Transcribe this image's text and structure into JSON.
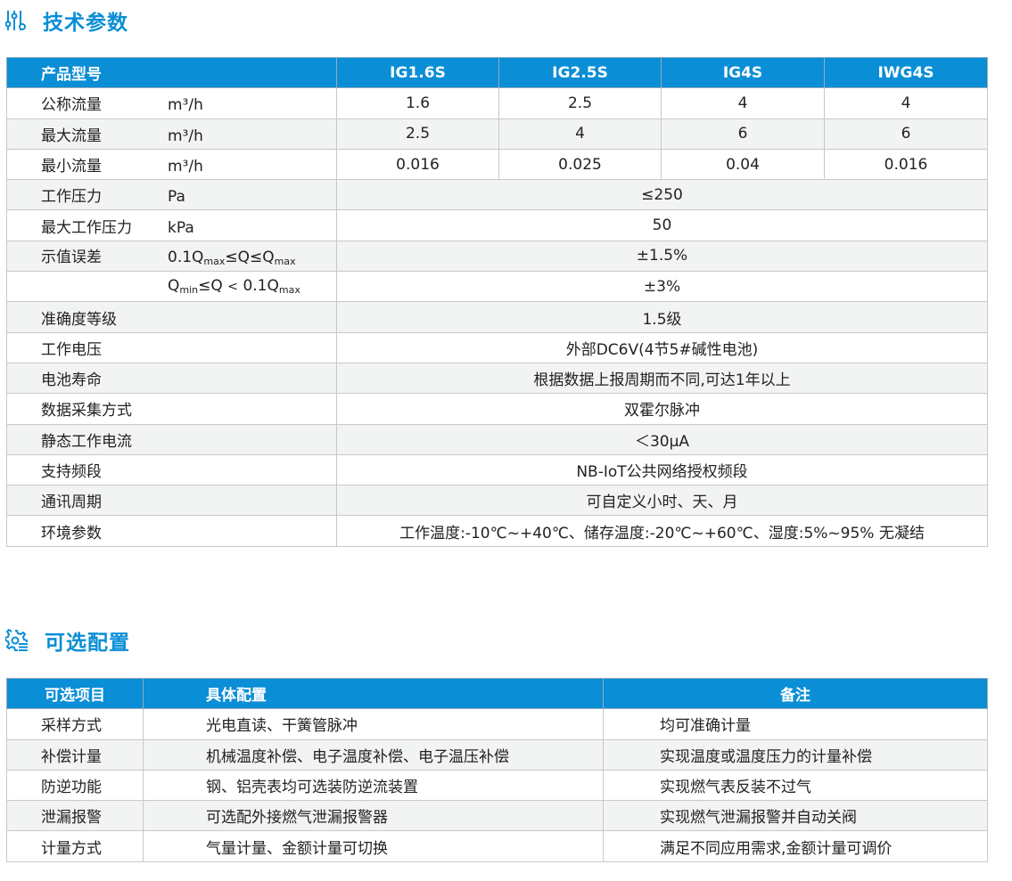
{
  "section1": {
    "title": "技术参数",
    "icon": "sliders-icon"
  },
  "specs": {
    "header": [
      "产品型号",
      "IG1.6S",
      "IG2.5S",
      "IG4S",
      "IWG4S"
    ],
    "model_rows": [
      {
        "name": "公称流量",
        "unit": "m³/h",
        "values": [
          "1.6",
          "2.5",
          "4",
          "4"
        ]
      },
      {
        "name": "最大流量",
        "unit": "m³/h",
        "values": [
          "2.5",
          "4",
          "6",
          "6"
        ]
      },
      {
        "name": "最小流量",
        "unit": "m³/h",
        "values": [
          "0.016",
          "0.025",
          "0.04",
          "0.016"
        ]
      }
    ],
    "pressure": {
      "name": "工作压力",
      "unit": "Pa",
      "value": "≤250"
    },
    "max_pressure": {
      "name": "最大工作压力",
      "unit": "kPa",
      "value": "50"
    },
    "error1": {
      "name": "示值误差",
      "cond": "0.1Qmax≤Q≤Qmax",
      "value": "±1.5%"
    },
    "error2": {
      "cond": "Qmin≤Q＜0.1Qmax",
      "value": "±3%"
    },
    "rows": [
      {
        "name": "准确度等级",
        "value": "1.5级"
      },
      {
        "name": "工作电压",
        "value": "外部DC6V(4节5#碱性电池)"
      },
      {
        "name": "电池寿命",
        "value": "根据数据上报周期而不同,可达1年以上"
      },
      {
        "name": "数据采集方式",
        "value": "双霍尔脉冲"
      },
      {
        "name": "静态工作电流",
        "value": "＜30μA"
      },
      {
        "name": "支持频段",
        "value": "NB-IoT公共网络授权频段"
      },
      {
        "name": "通讯周期",
        "value": "可自定义小时、天、月"
      },
      {
        "name": "环境参数",
        "value": "工作温度:-10℃~+40℃、储存温度:-20℃~+60℃、湿度:5%~95% 无凝结"
      }
    ]
  },
  "section2": {
    "title": "可选配置",
    "icon": "gear-list-icon"
  },
  "options": {
    "header": [
      "可选项目",
      "具体配置",
      "备注"
    ],
    "rows": [
      [
        "采样方式",
        "光电直读、干簧管脉冲",
        "均可准确计量"
      ],
      [
        "补偿计量",
        "机械温度补偿、电子温度补偿、电子温压补偿",
        "实现温度或温度压力的计量补偿"
      ],
      [
        "防逆功能",
        "钢、铝壳表均可选装防逆流装置",
        "实现燃气表反装不过气"
      ],
      [
        "泄漏报警",
        "可选配外接燃气泄漏报警器",
        "实现燃气泄漏报警并自动关阀"
      ],
      [
        "计量方式",
        "气量计量、金额计量可切换",
        "满足不同应用需求,金额计量可调价"
      ]
    ]
  },
  "colors": {
    "accent": "#0a8ed6",
    "alt_row": "#f2f3f3"
  }
}
